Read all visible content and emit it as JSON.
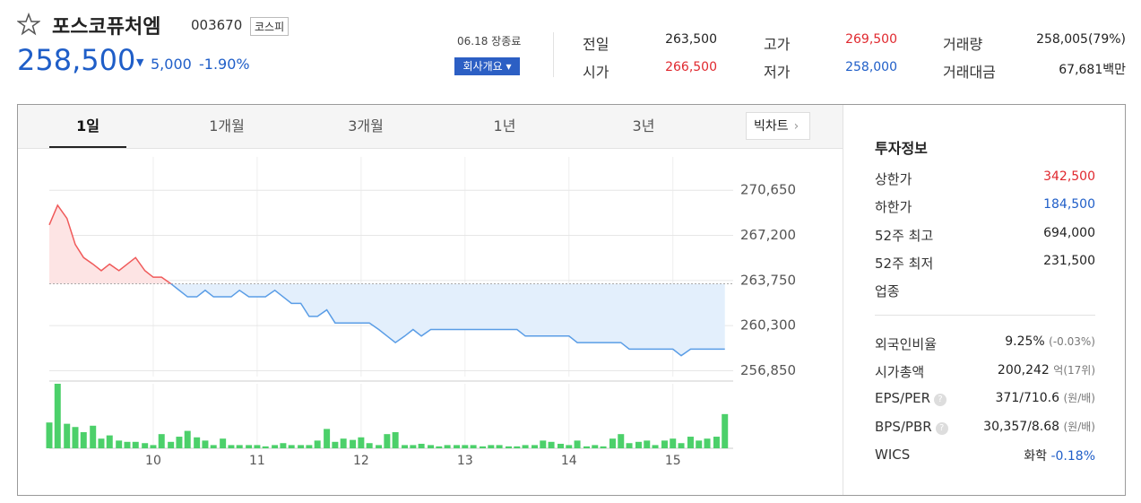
{
  "header": {
    "name": "포스코퓨처엠",
    "code": "003670",
    "market": "코스피",
    "price": "258,500",
    "change": "5,000",
    "change_rate": "-1.90%",
    "status": "06.18 장종료",
    "company_button": "회사개요"
  },
  "summary": [
    {
      "label": "전일",
      "value": "263,500"
    },
    {
      "label": "고가",
      "value": "269,500"
    },
    {
      "label": "거래량",
      "value": "258,005(79%)"
    },
    {
      "label": "시가",
      "value": "266,500"
    },
    {
      "label": "저가",
      "value": "258,000"
    },
    {
      "label": "거래대금",
      "value": "67,681백만"
    }
  ],
  "tabs": [
    "1일",
    "1개월",
    "3개월",
    "1년",
    "3년"
  ],
  "big_chart": "빅차트",
  "chart_data": {
    "type": "line",
    "x": [
      9,
      9.08,
      9.17,
      9.25,
      9.33,
      9.42,
      9.5,
      9.58,
      9.67,
      9.75,
      9.83,
      9.92,
      10,
      10.08,
      10.17,
      10.25,
      10.33,
      10.42,
      10.5,
      10.58,
      10.67,
      10.75,
      10.83,
      10.92,
      11,
      11.08,
      11.17,
      11.25,
      11.33,
      11.42,
      11.5,
      11.58,
      11.67,
      11.75,
      11.83,
      11.92,
      12,
      12.08,
      12.17,
      12.25,
      12.33,
      12.42,
      12.5,
      12.58,
      12.67,
      12.75,
      12.83,
      12.92,
      13,
      13.08,
      13.17,
      13.25,
      13.33,
      13.42,
      13.5,
      13.58,
      13.67,
      13.75,
      13.83,
      13.92,
      14,
      14.08,
      14.17,
      14.25,
      14.33,
      14.42,
      14.5,
      14.58,
      14.67,
      14.75,
      14.83,
      14.92,
      15,
      15.08,
      15.17,
      15.25,
      15.33,
      15.42,
      15.5
    ],
    "series": [
      {
        "up_color": "#f05a5a",
        "down_color": "#5a9de6",
        "up_fill": "#fde4e4",
        "down_fill": "#e3effc",
        "values": [
          268000,
          269500,
          268500,
          266500,
          265500,
          265000,
          264500,
          265000,
          264500,
          265000,
          265500,
          264500,
          264000,
          264000,
          263500,
          263000,
          262500,
          262500,
          263000,
          262500,
          262500,
          262500,
          263000,
          262500,
          262500,
          262500,
          263000,
          262500,
          262000,
          262000,
          261000,
          261000,
          261500,
          260500,
          260500,
          260500,
          260500,
          260500,
          260000,
          259500,
          259000,
          259500,
          260000,
          259500,
          260000,
          260000,
          260000,
          260000,
          260000,
          260000,
          260000,
          260000,
          260000,
          260000,
          260000,
          259500,
          259500,
          259500,
          259500,
          259500,
          259500,
          259000,
          259000,
          259000,
          259000,
          259000,
          259000,
          258500,
          258500,
          258500,
          258500,
          258500,
          258500,
          258000,
          258500,
          258500,
          258500,
          258500,
          258500
        ]
      },
      {
        "type": "bar",
        "axis": "y2",
        "color": "#4cd06a",
        "values": [
          40,
          100,
          38,
          33,
          25,
          35,
          15,
          20,
          12,
          10,
          10,
          8,
          5,
          22,
          10,
          18,
          27,
          17,
          12,
          5,
          15,
          5,
          5,
          5,
          5,
          3,
          5,
          8,
          5,
          5,
          5,
          12,
          30,
          10,
          15,
          13,
          17,
          8,
          5,
          22,
          25,
          5,
          5,
          7,
          5,
          3,
          5,
          5,
          5,
          5,
          3,
          5,
          5,
          3,
          3,
          5,
          5,
          12,
          10,
          7,
          5,
          12,
          3,
          5,
          3,
          15,
          22,
          8,
          10,
          12,
          5,
          12,
          15,
          8,
          18,
          12,
          15,
          18,
          53
        ]
      }
    ],
    "baseline": 263500,
    "xlim": [
      9,
      15.58
    ],
    "xticks": [
      10,
      11,
      12,
      13,
      14,
      15
    ],
    "ylim": [
      256400,
      273200
    ],
    "yticks": [
      {
        "value": 256850,
        "label": "256,850"
      },
      {
        "value": 260300,
        "label": "260,300"
      },
      {
        "value": 263750,
        "label": "263,750"
      },
      {
        "value": 267200,
        "label": "267,200"
      },
      {
        "value": 270650,
        "label": "270,650"
      }
    ],
    "y2lim": [
      0,
      100
    ],
    "grid": true
  },
  "invest": {
    "title": "투자정보",
    "rows": [
      {
        "label": "상한가",
        "value": "342,500"
      },
      {
        "label": "하한가",
        "value": "184,500"
      },
      {
        "label": "52주 최고",
        "value": "694,000"
      },
      {
        "label": "52주 최저",
        "value": "231,500"
      },
      {
        "label": "업종"
      }
    ],
    "rows2": [
      {
        "label": "외국인비율",
        "value": "9.25%",
        "note": "(-0.03%)"
      },
      {
        "label": "시가총액",
        "value": "200,242",
        "note": "억(17위)"
      },
      {
        "label": "EPS/PER",
        "value": "371/710.6",
        "note": "(원/배)"
      },
      {
        "label": "BPS/PBR",
        "value": "30,357/8.68",
        "note": "(원/배)"
      },
      {
        "label": "WICS",
        "value": "화학",
        "note": "-0.18%"
      }
    ]
  }
}
